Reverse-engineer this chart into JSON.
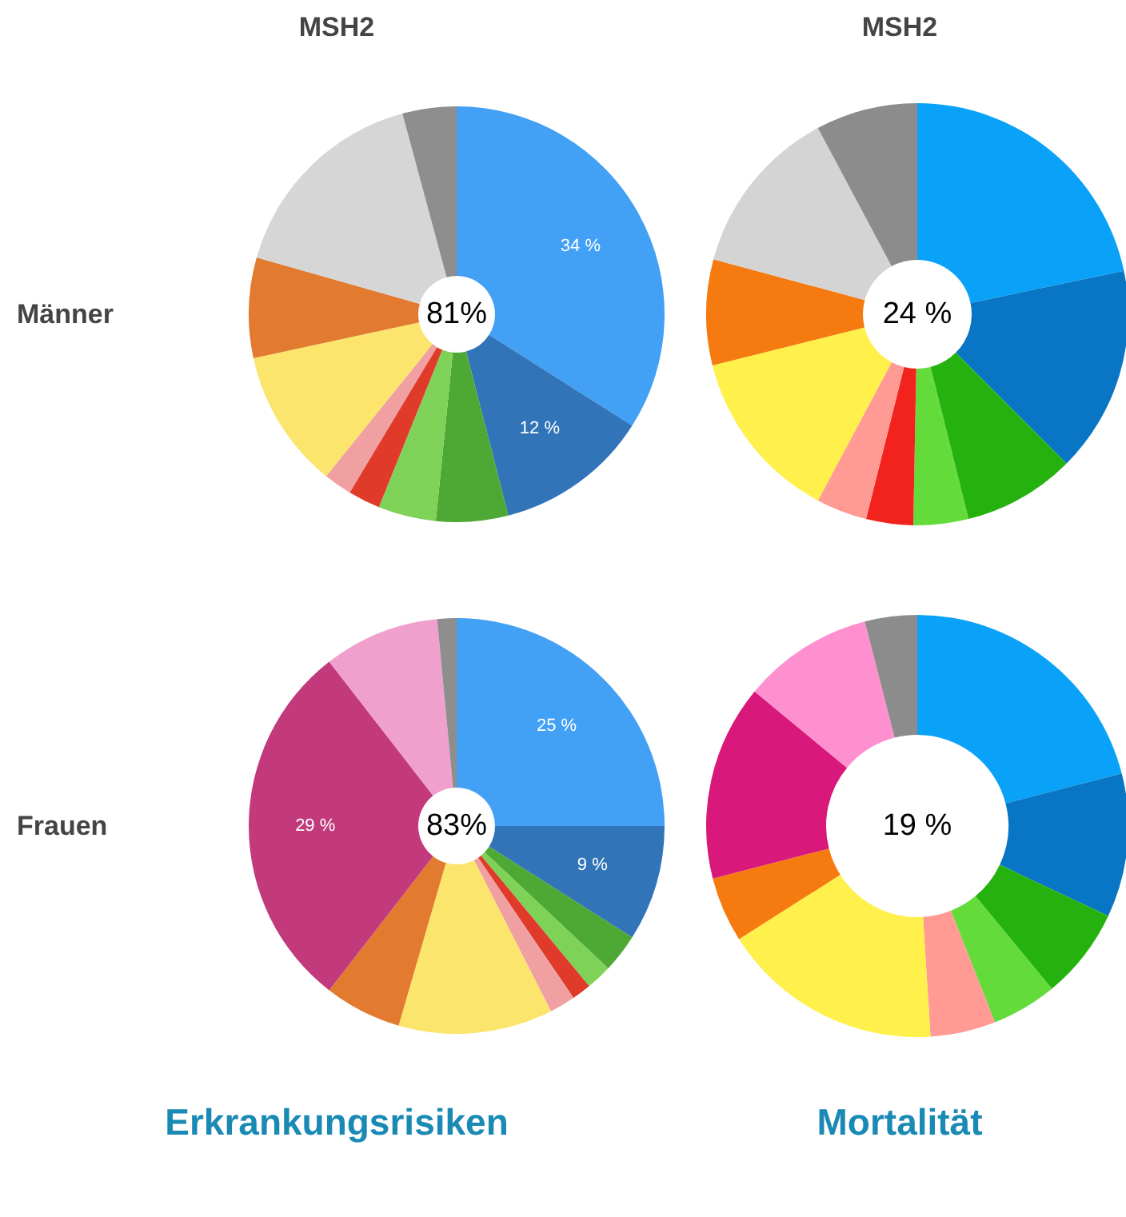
{
  "chart_data": [
    {
      "type": "donut",
      "title": "MSH2",
      "ylabel": "Männer",
      "categories": [
        null,
        null,
        null,
        null,
        null,
        null,
        null,
        null,
        null,
        null
      ],
      "values": [
        34,
        12,
        5.6,
        4.5,
        2.5,
        2.2,
        10.8,
        7.8,
        16.4,
        4.2
      ],
      "colors": [
        "#42a0f5",
        "#3274b8",
        "#4ea834",
        "#7ed257",
        "#e03a2a",
        "#f0a0a0",
        "#fbe56c",
        "#e27b30",
        "#d6d6d6",
        "#8e8e8e"
      ],
      "value_labels": [
        "34 %",
        "12 %",
        null,
        null,
        null,
        null,
        null,
        null,
        null,
        null
      ],
      "annotations": [
        "81%"
      ]
    },
    {
      "type": "donut",
      "title": "MSH2",
      "categories": [
        null,
        null,
        null,
        null,
        null,
        null,
        null,
        null,
        null,
        null
      ],
      "values": [
        21.7,
        15.8,
        8.6,
        4.2,
        3.6,
        3.9,
        13.3,
        8.1,
        13,
        7.8
      ],
      "colors": [
        "#0aa2f8",
        "#0876c4",
        "#25b20e",
        "#62db3b",
        "#f2231c",
        "#ff9b94",
        "#fff04b",
        "#f57a0f",
        "#d4d4d4",
        "#8c8c8c"
      ],
      "annotations": [
        "24 %"
      ]
    },
    {
      "type": "donut",
      "ylabel": "Frauen",
      "xlabel": "Erkrankungsrisiken",
      "categories": [
        null,
        null,
        null,
        null,
        null,
        null,
        null,
        null,
        null,
        null,
        null
      ],
      "values": [
        25,
        9,
        3,
        2,
        1.5,
        2,
        12,
        6,
        29,
        9,
        1.5
      ],
      "colors": [
        "#42a0f5",
        "#3274b8",
        "#4ea834",
        "#7ed257",
        "#e03a2a",
        "#f0a0a0",
        "#fbe56c",
        "#e27b30",
        "#c23a7c",
        "#f0a0cc",
        "#8e8e8e"
      ],
      "value_labels": [
        "25 %",
        "9 %",
        null,
        null,
        null,
        null,
        null,
        null,
        "29 %",
        null,
        null
      ],
      "annotations": [
        "83%"
      ]
    },
    {
      "type": "donut",
      "xlabel": "Mortalität",
      "categories": [
        null,
        null,
        null,
        null,
        null,
        null,
        null,
        null,
        null,
        null
      ],
      "values": [
        21,
        11,
        7,
        5,
        5,
        17,
        5,
        15,
        10,
        4
      ],
      "colors": [
        "#0aa2f8",
        "#0876c4",
        "#25b20e",
        "#62db3b",
        "#ff9b94",
        "#fff04b",
        "#f57a0f",
        "#d8187a",
        "#ff90d0",
        "#8c8c8c"
      ],
      "annotations": [
        "19 %"
      ]
    }
  ]
}
